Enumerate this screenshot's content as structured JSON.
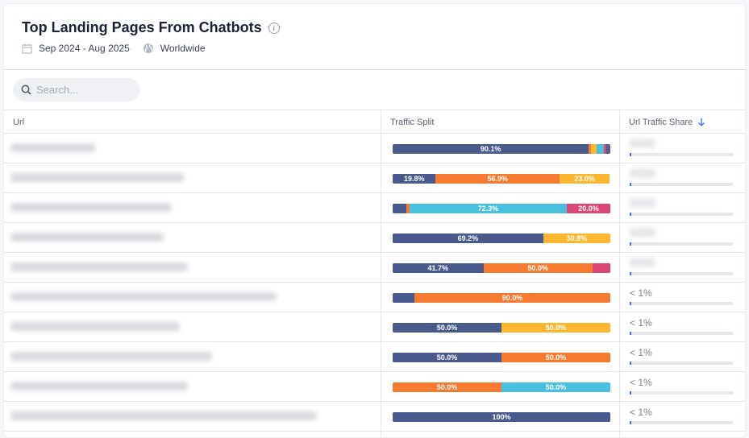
{
  "header": {
    "title": "Top Landing Pages From Chatbots",
    "date_range": "Sep 2024 - Aug 2025",
    "region": "Worldwide",
    "icons": [
      "info-icon",
      "calendar-icon",
      "globe-icon"
    ]
  },
  "search": {
    "placeholder": "Search..."
  },
  "columns": {
    "url": "Url",
    "split": "Traffic Split",
    "share": "Url Traffic Share",
    "sort": "descending"
  },
  "colors": {
    "navy": "#4a5a8c",
    "orange": "#f47b30",
    "yellow": "#fbb731",
    "cyan": "#47c0e1",
    "pink": "#dc4775",
    "slate": "#55608a"
  },
  "rows": [
    {
      "share": "",
      "share_pct": 0.3,
      "segments": [
        {
          "c": "navy",
          "v": 90.1,
          "l": "90.1%"
        },
        {
          "c": "orange",
          "v": 1.1
        },
        {
          "c": "yellow",
          "v": 2.6
        },
        {
          "c": "cyan",
          "v": 3.2
        },
        {
          "c": "pink",
          "v": 1.0
        },
        {
          "c": "slate",
          "v": 2.0
        }
      ]
    },
    {
      "share": "",
      "share_pct": 0.3,
      "segments": [
        {
          "c": "navy",
          "v": 19.8,
          "l": "19.8%"
        },
        {
          "c": "orange",
          "v": 56.9,
          "l": "56.9%"
        },
        {
          "c": "yellow",
          "v": 23.0,
          "l": "23.0%"
        }
      ]
    },
    {
      "share": "",
      "share_pct": 0.3,
      "segments": [
        {
          "c": "navy",
          "v": 6.2
        },
        {
          "c": "orange",
          "v": 1.5
        },
        {
          "c": "cyan",
          "v": 72.3,
          "l": "72.3%"
        },
        {
          "c": "pink",
          "v": 20.0,
          "l": "20.0%"
        }
      ]
    },
    {
      "share": "",
      "share_pct": 0.3,
      "segments": [
        {
          "c": "navy",
          "v": 69.2,
          "l": "69.2%"
        },
        {
          "c": "yellow",
          "v": 30.8,
          "l": "30.8%"
        }
      ]
    },
    {
      "share": "",
      "share_pct": 0.3,
      "segments": [
        {
          "c": "navy",
          "v": 41.7,
          "l": "41.7%"
        },
        {
          "c": "orange",
          "v": 50.0,
          "l": "50.0%"
        },
        {
          "c": "pink",
          "v": 8.3
        }
      ]
    },
    {
      "share": "< 1%",
      "share_pct": 0.3,
      "segments": [
        {
          "c": "navy",
          "v": 10.0
        },
        {
          "c": "orange",
          "v": 90.0,
          "l": "90.0%"
        }
      ]
    },
    {
      "share": "< 1%",
      "share_pct": 0.3,
      "segments": [
        {
          "c": "navy",
          "v": 50.0,
          "l": "50.0%"
        },
        {
          "c": "yellow",
          "v": 50.0,
          "l": "50.0%"
        }
      ]
    },
    {
      "share": "< 1%",
      "share_pct": 0.3,
      "segments": [
        {
          "c": "navy",
          "v": 50.0,
          "l": "50.0%"
        },
        {
          "c": "orange",
          "v": 50.0,
          "l": "50.0%"
        }
      ]
    },
    {
      "share": "< 1%",
      "share_pct": 0.3,
      "segments": [
        {
          "c": "orange",
          "v": 50.0,
          "l": "50.0%"
        },
        {
          "c": "cyan",
          "v": 50.0,
          "l": "50.0%"
        }
      ]
    },
    {
      "share": "< 1%",
      "share_pct": 0.3,
      "segments": [
        {
          "c": "navy",
          "v": 100,
          "l": "100%"
        }
      ]
    }
  ]
}
